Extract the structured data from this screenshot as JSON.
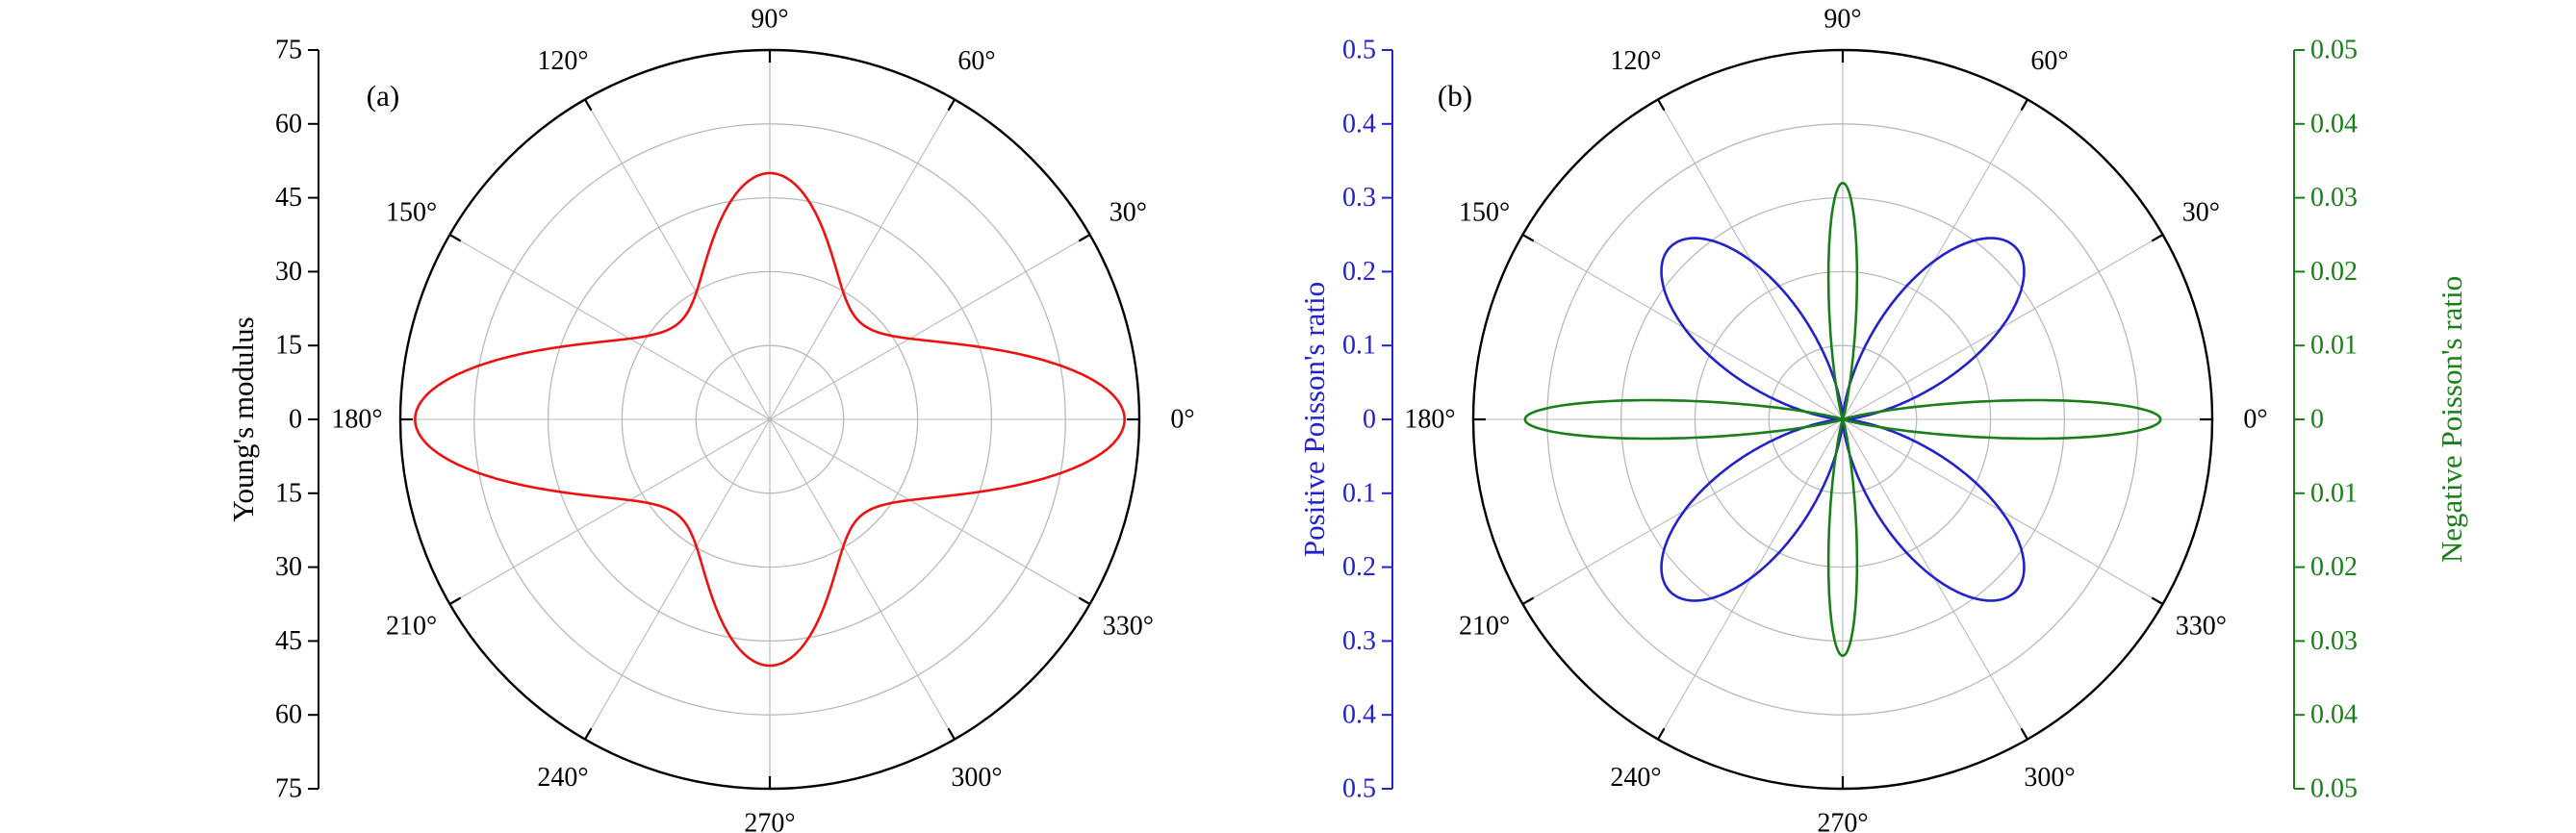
{
  "figure": {
    "background": "#ffffff",
    "panels": [
      {
        "tag": "(a)"
      },
      {
        "tag": "(b)"
      }
    ]
  },
  "chart_data": [
    {
      "type": "polar-line",
      "panel_tag": "(a)",
      "grid": {
        "circle_fractions": [
          0.2,
          0.4,
          0.6,
          0.8
        ],
        "spoke_step_deg": 30
      },
      "angle_ticks_deg": [
        0,
        30,
        60,
        90,
        120,
        150,
        180,
        210,
        240,
        270,
        300,
        330
      ],
      "angle_tick_labels": [
        "0°",
        "30°",
        "60°",
        "90°",
        "120°",
        "150°",
        "180°",
        "210°",
        "240°",
        "270°",
        "300°",
        "330°"
      ],
      "radial_axis": {
        "label": "Young's modulus",
        "color": "#000000",
        "min": 0,
        "max": 75,
        "tick_step": 15,
        "tick_labels_top_to_bottom": [
          "75",
          "60",
          "45",
          "30",
          "15",
          "0",
          "15",
          "30",
          "45",
          "60",
          "75"
        ]
      },
      "series": [
        {
          "key": "young-modulus",
          "name": "Young's modulus",
          "color": "#ee1111",
          "r_axis_max": 75,
          "model": {
            "type": "orthotropic_modulus",
            "E0": 72,
            "E90": 50,
            "K": 0.11426
          },
          "theta_deg": [
            0,
            15,
            30,
            45,
            60,
            75,
            90,
            105,
            120,
            135,
            150,
            165,
            180,
            195,
            210,
            225,
            240,
            255,
            270,
            285,
            300,
            315,
            330,
            345,
            360
          ],
          "r": [
            72,
            51.8,
            32.8,
            27,
            29.8,
            40.6,
            50,
            40.6,
            29.8,
            27,
            32.8,
            51.8,
            72,
            51.8,
            32.8,
            27,
            29.8,
            40.6,
            50,
            40.6,
            29.8,
            27,
            32.8,
            51.8,
            72
          ]
        }
      ]
    },
    {
      "type": "polar-line",
      "panel_tag": "(b)",
      "grid": {
        "circle_fractions": [
          0.2,
          0.4,
          0.6,
          0.8
        ],
        "spoke_step_deg": 30
      },
      "angle_ticks_deg": [
        0,
        30,
        60,
        90,
        120,
        150,
        180,
        210,
        240,
        270,
        300,
        330
      ],
      "angle_tick_labels": [
        "0°",
        "30°",
        "60°",
        "90°",
        "120°",
        "150°",
        "180°",
        "210°",
        "240°",
        "270°",
        "300°",
        "330°"
      ],
      "radial_axis_left": {
        "label": "Positive Poisson's ratio",
        "color": "#2222cc",
        "min": 0,
        "max": 0.5,
        "tick_step": 0.1,
        "tick_labels_top_to_bottom": [
          "0.5",
          "0.4",
          "0.3",
          "0.2",
          "0.1",
          "0",
          "0.1",
          "0.2",
          "0.3",
          "0.4",
          "0.5"
        ]
      },
      "radial_axis_right": {
        "label": "Negative Poisson's ratio",
        "color": "#1a7f1a",
        "min": 0,
        "max": 0.05,
        "tick_step": 0.01,
        "tick_labels_top_to_bottom": [
          "0.05",
          "0.04",
          "0.03",
          "0.02",
          "0.01",
          "0",
          "0.01",
          "0.02",
          "0.03",
          "0.04",
          "0.05"
        ]
      },
      "series": [
        {
          "key": "positive-poisson-ratio",
          "name": "Positive Poisson's ratio",
          "axis": "left",
          "color": "#2222cc",
          "r_axis_max": 0.5,
          "model": {
            "type": "four_lobe",
            "A": 0.33
          },
          "theta_deg": [
            0,
            15,
            30,
            45,
            60,
            75,
            90,
            105,
            120,
            135,
            150,
            165,
            180,
            195,
            210,
            225,
            240,
            255,
            270,
            285,
            300,
            315,
            330,
            345,
            360
          ],
          "r": [
            0,
            0.08,
            0.25,
            0.33,
            0.25,
            0.08,
            0,
            0.08,
            0.25,
            0.33,
            0.25,
            0.08,
            0,
            0.08,
            0.25,
            0.33,
            0.25,
            0.08,
            0,
            0.08,
            0.25,
            0.33,
            0.25,
            0.08,
            0
          ]
        },
        {
          "key": "negative-poisson-ratio",
          "name": "Negative Poisson's ratio",
          "axis": "right",
          "color": "#1a7f1a",
          "r_axis_max": 0.05,
          "model": {
            "type": "axis_needles",
            "Ax": 0.043,
            "Ay": 0.032,
            "p": 100
          },
          "theta_deg": [
            0,
            15,
            30,
            45,
            60,
            75,
            90,
            105,
            120,
            135,
            150,
            165,
            180,
            195,
            210,
            225,
            240,
            255,
            270,
            285,
            300,
            315,
            330,
            345,
            360
          ],
          "r": [
            0.043,
            0.001,
            0,
            0,
            0,
            0.001,
            0.032,
            0.001,
            0,
            0,
            0,
            0.001,
            0.043,
            0.001,
            0,
            0,
            0,
            0.001,
            0.032,
            0.001,
            0,
            0,
            0,
            0.001,
            0.043
          ]
        }
      ]
    }
  ]
}
